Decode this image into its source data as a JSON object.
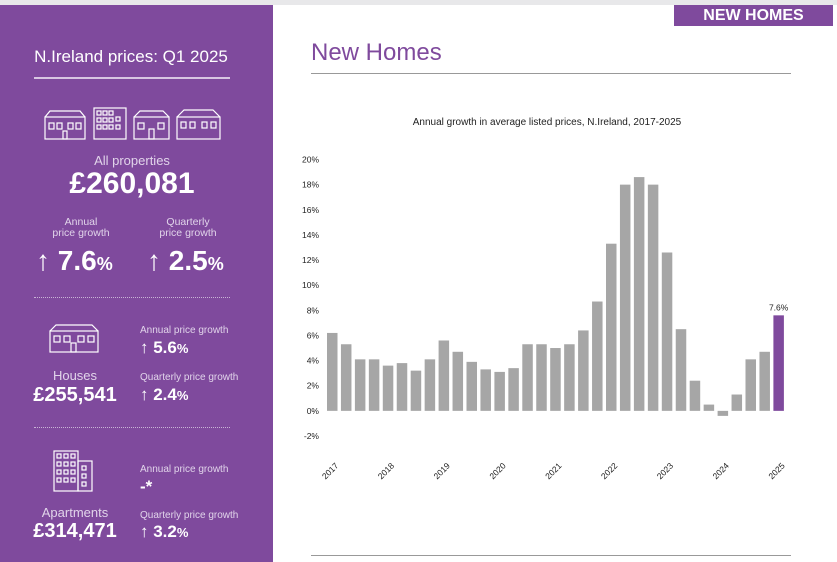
{
  "sidebar": {
    "title": "N.Ireland prices: Q1 2025",
    "all_label": "All properties",
    "all_value": "£260,081",
    "annual_label_1": "Annual",
    "annual_label_2": "price growth",
    "quarterly_label_1": "Quarterly",
    "quarterly_label_2": "price growth",
    "annual_growth": "↑ 7.6",
    "quarterly_growth": "↑ 2.5",
    "pct": "%",
    "houses": {
      "label": "Houses",
      "value": "£255,541",
      "annual_label": "Annual price growth",
      "annual_value": "↑ 5.6",
      "quarterly_label": "Quarterly price growth",
      "quarterly_value": "↑ 2.4"
    },
    "apartments": {
      "label": "Apartments",
      "value": "£314,471",
      "annual_label": "Annual price growth",
      "annual_value": "-*",
      "quarterly_label": "Quarterly price growth",
      "quarterly_value": "↑ 3.2"
    }
  },
  "main": {
    "tag": "NEW HOMES",
    "title": "New Homes"
  },
  "colors": {
    "accent": "#7f4a9d",
    "bar": "#a6a6a6"
  },
  "chart_data": {
    "type": "bar",
    "title": "Annual growth in average listed prices, N.Ireland, 2017-2025",
    "xlabel": "",
    "ylabel": "",
    "ylim": [
      -2,
      20
    ],
    "yticks": [
      "20%",
      "18%",
      "16%",
      "14%",
      "12%",
      "10%",
      "8%",
      "6%",
      "4%",
      "2%",
      "0%",
      "-2%"
    ],
    "year_labels": [
      "2017",
      "2018",
      "2019",
      "2020",
      "2021",
      "2022",
      "2023",
      "2024",
      "2025"
    ],
    "values": [
      6.2,
      5.3,
      4.1,
      4.1,
      3.6,
      3.8,
      3.2,
      4.1,
      5.6,
      4.7,
      3.9,
      3.3,
      3.1,
      3.4,
      5.3,
      5.3,
      5.0,
      5.3,
      6.4,
      8.7,
      13.3,
      18.0,
      18.6,
      18.0,
      12.6,
      6.5,
      2.4,
      0.5,
      -0.4,
      1.3,
      4.1,
      4.7,
      7.6
    ],
    "highlight_last": true,
    "last_label": "7.6%",
    "grid": false
  }
}
